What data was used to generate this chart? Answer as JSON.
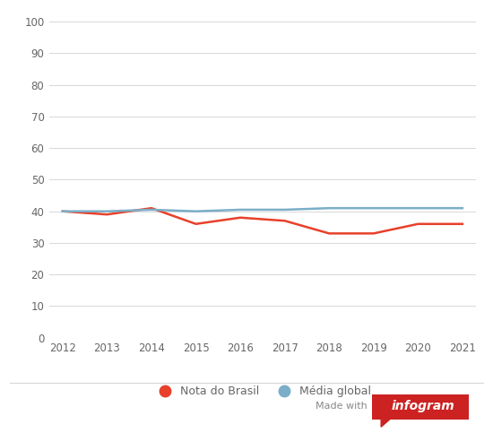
{
  "years": [
    2012,
    2013,
    2014,
    2015,
    2016,
    2017,
    2018,
    2019,
    2020,
    2021
  ],
  "brasil": [
    40,
    39,
    41,
    36,
    38,
    37,
    33,
    33,
    36,
    36
  ],
  "media_global": [
    40,
    40,
    40.5,
    40,
    40.5,
    40.5,
    41,
    41,
    41,
    41
  ],
  "brasil_color": "#e8402a",
  "media_color": "#7baec8",
  "brasil_label": "Nota do Brasil",
  "media_label": "Média global",
  "ylim": [
    0,
    100
  ],
  "yticks": [
    0,
    10,
    20,
    30,
    40,
    50,
    60,
    70,
    80,
    90,
    100
  ],
  "background_color": "#ffffff",
  "grid_color": "#d8d8d8",
  "tick_label_color": "#666666",
  "line_width": 1.8,
  "legend_marker_size": 9,
  "infogram_red": "#cc2222",
  "infogram_text": "infogram",
  "madewith_text": "Made with"
}
